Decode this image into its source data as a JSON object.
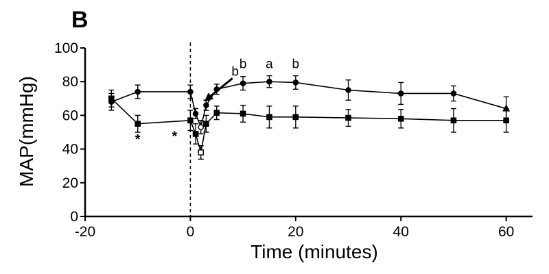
{
  "panel_label": "B",
  "chart_data": {
    "type": "line",
    "xlabel": "Time (minutes)",
    "ylabel": "MAP(mmHg)",
    "xlim": [
      -20,
      65
    ],
    "ylim": [
      0,
      100
    ],
    "x_ticks": [
      -20,
      0,
      20,
      40,
      60
    ],
    "y_ticks": [
      0,
      20,
      40,
      60,
      80,
      100
    ],
    "grid": false,
    "reference_line": {
      "x": 0,
      "style": "dashed"
    },
    "series": [
      {
        "marker": "circle",
        "color": "#000000",
        "points": [
          {
            "x": -15,
            "y": 68,
            "err": 5,
            "marker": "circle-filled"
          },
          {
            "x": -10,
            "y": 74,
            "err": 4,
            "marker": "circle-filled"
          },
          {
            "x": 0,
            "y": 74,
            "err": 4,
            "marker": "circle-filled"
          },
          {
            "x": 1,
            "y": 61,
            "err": 3,
            "marker": "circle-filled"
          },
          {
            "x": 2,
            "y": 53,
            "err": 4,
            "marker": "circle-open"
          },
          {
            "x": 3,
            "y": 66,
            "err": 3,
            "marker": "circle-filled"
          },
          {
            "x": 5,
            "y": 75.5,
            "err": 3,
            "marker": "circle-filled"
          },
          {
            "x": 10,
            "y": 79,
            "err": 4,
            "marker": "circle-filled"
          },
          {
            "x": 15,
            "y": 80,
            "err": 3.5,
            "marker": "circle-filled"
          },
          {
            "x": 20,
            "y": 79.5,
            "err": 4,
            "marker": "circle-filled"
          },
          {
            "x": 30,
            "y": 75,
            "err": 6,
            "marker": "circle-filled"
          },
          {
            "x": 40,
            "y": 73,
            "err": 6.5,
            "marker": "circle-filled"
          },
          {
            "x": 50,
            "y": 73,
            "err": 4.5,
            "marker": "circle-filled"
          },
          {
            "x": 60,
            "y": 64,
            "err": 7,
            "marker": "triangle-filled"
          }
        ]
      },
      {
        "marker": "square",
        "color": "#000000",
        "points": [
          {
            "x": -15,
            "y": 70,
            "err": 5,
            "marker": "square-filled"
          },
          {
            "x": -10,
            "y": 55,
            "err": 5,
            "marker": "square-filled"
          },
          {
            "x": 0,
            "y": 57,
            "err": 6,
            "marker": "square-filled"
          },
          {
            "x": 1,
            "y": 49,
            "err": 6,
            "marker": "square-filled"
          },
          {
            "x": 2,
            "y": 38,
            "err": 4,
            "marker": "square-open"
          },
          {
            "x": 3,
            "y": 55,
            "err": 5,
            "marker": "square-filled"
          },
          {
            "x": 5,
            "y": 61.5,
            "err": 4,
            "marker": "square-filled"
          },
          {
            "x": 10,
            "y": 61,
            "err": 5,
            "marker": "square-filled"
          },
          {
            "x": 15,
            "y": 59,
            "err": 6.5,
            "marker": "square-filled"
          },
          {
            "x": 20,
            "y": 59,
            "err": 6.5,
            "marker": "square-filled"
          },
          {
            "x": 30,
            "y": 58.5,
            "err": 5,
            "marker": "square-filled"
          },
          {
            "x": 40,
            "y": 58,
            "err": 5.5,
            "marker": "square-filled"
          },
          {
            "x": 50,
            "y": 57,
            "err": 7,
            "marker": "square-filled"
          },
          {
            "x": 60,
            "y": 57,
            "err": 7,
            "marker": "square-filled"
          }
        ]
      }
    ],
    "annotations": [
      {
        "text": "b",
        "x": 10,
        "y": 88,
        "kind": "letter"
      },
      {
        "text": "a",
        "x": 15,
        "y": 88,
        "kind": "letter"
      },
      {
        "text": "b",
        "x": 20,
        "y": 88,
        "kind": "letter"
      },
      {
        "text": "b",
        "x": 8.5,
        "y": 83.5,
        "kind": "letter"
      },
      {
        "text": "*",
        "x": -10,
        "y": 43,
        "kind": "star"
      },
      {
        "text": "*",
        "x": -3,
        "y": 45,
        "kind": "star"
      }
    ],
    "arrow": {
      "from": {
        "x": 8,
        "y": 82
      },
      "to": {
        "x": 2.7,
        "y": 68.5
      }
    }
  }
}
